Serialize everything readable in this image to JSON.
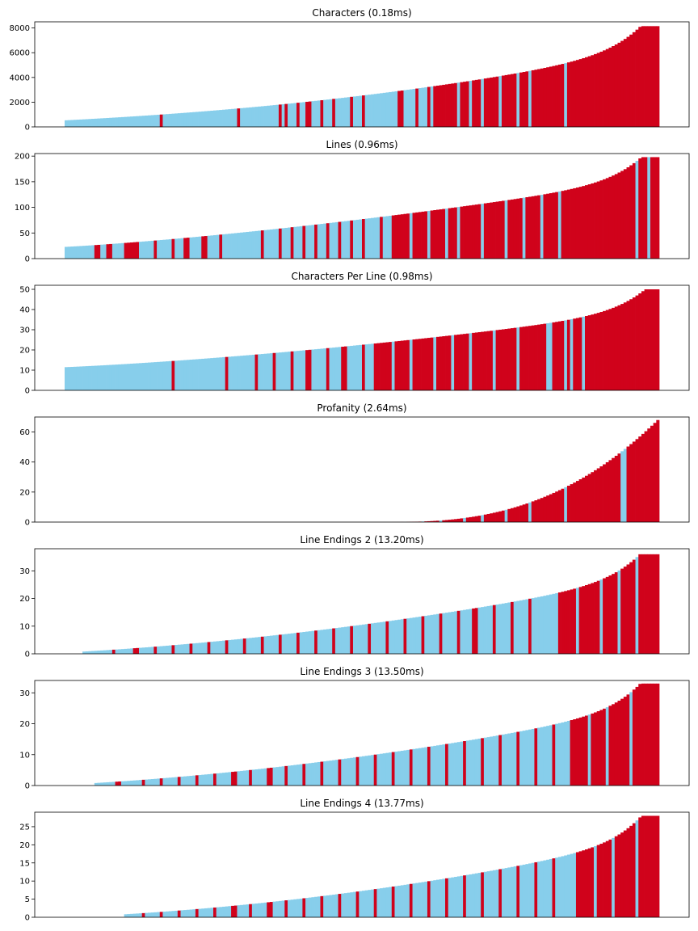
{
  "colors": {
    "highlight": "#87ceeb",
    "other": "#d0021b"
  },
  "chart_data": [
    {
      "type": "bar",
      "title": "Characters (0.18ms)",
      "ylim": [
        0,
        8500
      ],
      "yticks": [
        0,
        2000,
        4000,
        6000,
        8000
      ],
      "n_bars": 200,
      "start": 650,
      "end": 8150,
      "curve": 2.2,
      "tail": 2.0,
      "red_from": 0.62,
      "red_singles": [
        0.16,
        0.29,
        0.36,
        0.37,
        0.39,
        0.41,
        0.43,
        0.45,
        0.48,
        0.5,
        0.56,
        0.59,
        0.61
      ],
      "blue_singles": [
        0.66,
        0.68,
        0.7,
        0.73,
        0.76,
        0.78,
        0.84
      ],
      "yearly_growth_hint": ""
    },
    {
      "type": "bar",
      "title": "Lines (0.96ms)",
      "ylim": [
        0,
        205
      ],
      "yticks": [
        0,
        50,
        100,
        150,
        200
      ],
      "n_bars": 200,
      "start": 28,
      "end": 198,
      "curve": 1.6,
      "tail": 2.2,
      "red_from": 0.55,
      "red_singles": [
        0.05,
        0.07,
        0.1,
        0.11,
        0.12,
        0.15,
        0.18,
        0.2,
        0.23,
        0.26,
        0.33,
        0.36,
        0.38,
        0.4,
        0.42,
        0.44,
        0.46,
        0.48,
        0.5,
        0.53
      ],
      "blue_singles": [
        0.58,
        0.61,
        0.64,
        0.66,
        0.7,
        0.74,
        0.77,
        0.8,
        0.83,
        0.96,
        0.98
      ]
    },
    {
      "type": "bar",
      "title": "Characters Per Line (0.98ms)",
      "ylim": [
        0,
        52
      ],
      "yticks": [
        0,
        10,
        20,
        30,
        40,
        50
      ],
      "n_bars": 200,
      "start": 14,
      "end": 50,
      "curve": 1.7,
      "tail": 1.6,
      "red_from": 0.52,
      "red_singles": [
        0.18,
        0.27,
        0.32,
        0.35,
        0.38,
        0.41,
        0.44,
        0.47,
        0.5
      ],
      "blue_singles": [
        0.55,
        0.58,
        0.62,
        0.65,
        0.68,
        0.72,
        0.76,
        0.81,
        0.84,
        0.85,
        0.87
      ]
    },
    {
      "type": "bar",
      "title": "Profanity (2.64ms)",
      "ylim": [
        0,
        70
      ],
      "yticks": [
        0,
        20,
        40,
        60
      ],
      "n_bars": 200,
      "start": 0,
      "end": 68,
      "curve": 1.0,
      "tail": 1.0,
      "zero_until": 0.54,
      "profanity": true,
      "red_from": 0.0,
      "red_singles": [],
      "blue_singles": [
        0.57,
        0.6,
        0.63,
        0.67,
        0.7,
        0.74,
        0.78,
        0.84,
        0.94
      ]
    },
    {
      "type": "bar",
      "title": "Line Endings 2 (13.20ms)",
      "ylim": [
        0,
        38
      ],
      "yticks": [
        0,
        10,
        20,
        30
      ],
      "n_bars": 200,
      "start": 1,
      "end": 36,
      "curve": 1.9,
      "tail": 1.6,
      "zero_until": 0.03,
      "red_from": 0.83,
      "red_singles": [
        0.08,
        0.12,
        0.15,
        0.18,
        0.21,
        0.24,
        0.27,
        0.3,
        0.33,
        0.36,
        0.39,
        0.42,
        0.45,
        0.48,
        0.51,
        0.54,
        0.57,
        0.6,
        0.63,
        0.66,
        0.69,
        0.72,
        0.75,
        0.78
      ],
      "blue_singles": [
        0.86,
        0.9,
        0.93,
        0.96
      ]
    },
    {
      "type": "bar",
      "title": "Line Endings 3 (13.50ms)",
      "ylim": [
        0,
        34
      ],
      "yticks": [
        0,
        10,
        20,
        30
      ],
      "n_bars": 200,
      "start": 1,
      "end": 33,
      "curve": 1.9,
      "tail": 1.6,
      "zero_until": 0.05,
      "red_from": 0.85,
      "red_singles": [
        0.09,
        0.13,
        0.16,
        0.19,
        0.22,
        0.25,
        0.28,
        0.31,
        0.34,
        0.37,
        0.4,
        0.43,
        0.46,
        0.49,
        0.52,
        0.55,
        0.58,
        0.61,
        0.64,
        0.67,
        0.7,
        0.73,
        0.76,
        0.79,
        0.82
      ],
      "blue_singles": [
        0.88,
        0.91,
        0.95
      ]
    },
    {
      "type": "bar",
      "title": "Line Endings 4 (13.77ms)",
      "ylim": [
        0,
        29
      ],
      "yticks": [
        0,
        5,
        10,
        15,
        20,
        25
      ],
      "n_bars": 200,
      "start": 1,
      "end": 28,
      "curve": 2.0,
      "tail": 1.7,
      "zero_until": 0.1,
      "red_from": 0.86,
      "red_singles": [
        0.13,
        0.16,
        0.19,
        0.22,
        0.25,
        0.28,
        0.31,
        0.34,
        0.37,
        0.4,
        0.43,
        0.46,
        0.49,
        0.52,
        0.55,
        0.58,
        0.61,
        0.64,
        0.67,
        0.7,
        0.73,
        0.76,
        0.79,
        0.82
      ],
      "blue_singles": [
        0.89,
        0.92,
        0.96
      ]
    }
  ]
}
